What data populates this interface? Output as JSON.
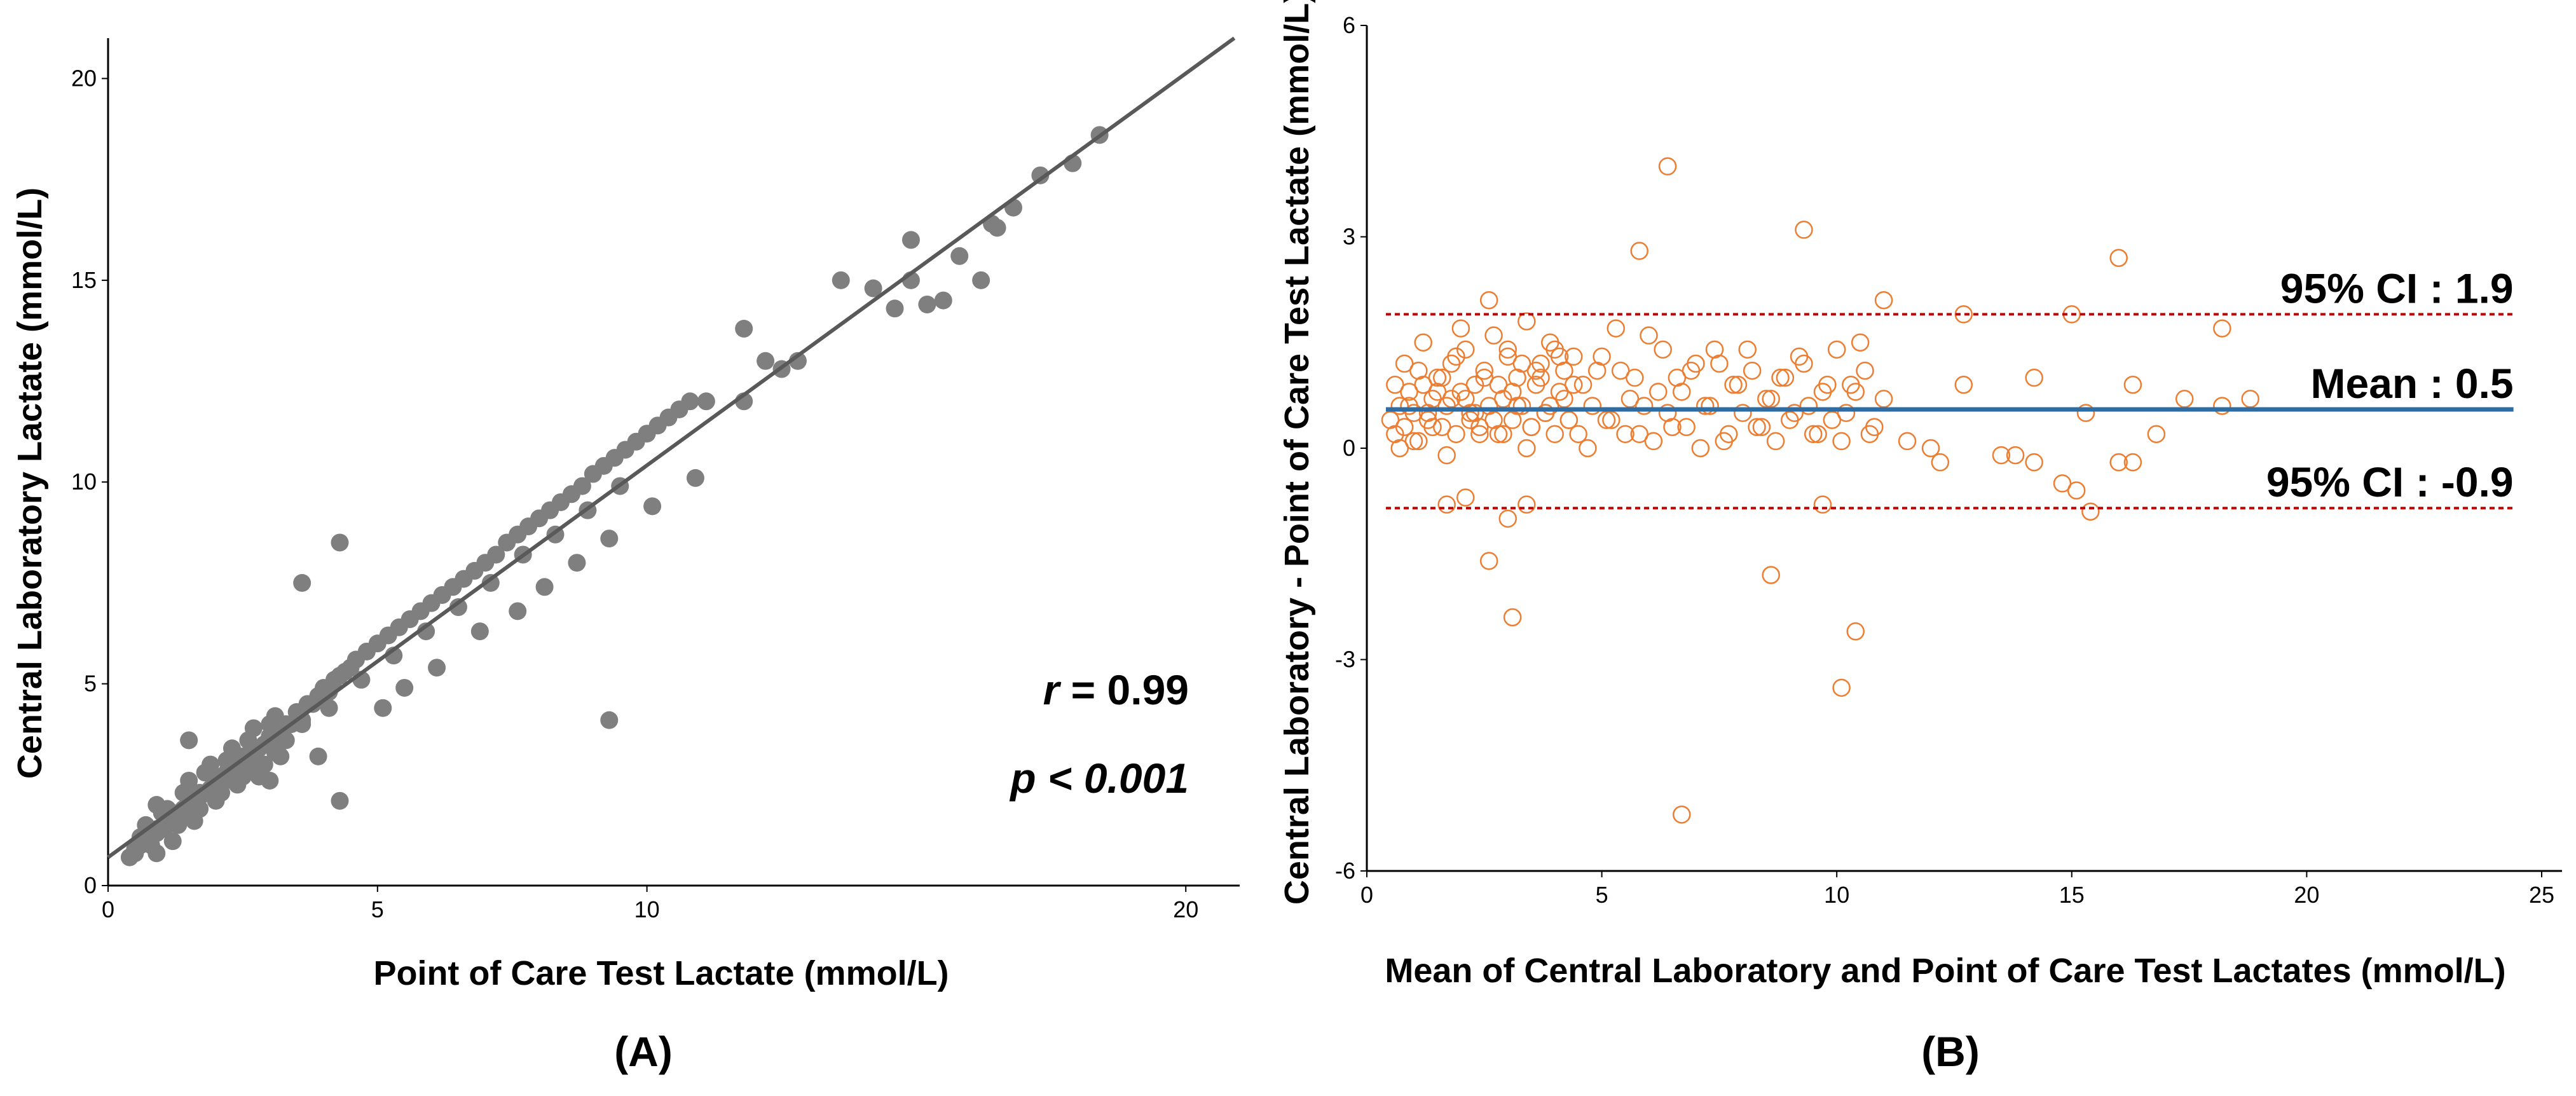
{
  "colors": {
    "scatter_points": "#7f7f7f",
    "regression_line": "#595959",
    "ba_points": "#ed7d31",
    "mean_line": "#2e6ca4",
    "ci_lines": "#c00000"
  },
  "chart_data": [
    {
      "panel_label": "(A)",
      "type": "scatter",
      "xlabel": "Point of Care Test Lactate (mmol/L)",
      "ylabel": "Central Laboratory Lactate (mmol/L)",
      "xlim": [
        0,
        21
      ],
      "ylim": [
        0,
        21
      ],
      "xticks": [
        0,
        5,
        10,
        20
      ],
      "yticks": [
        0,
        5,
        10,
        15,
        20
      ],
      "annotations": {
        "r_symbol": "r",
        "r_text": " = 0.99",
        "p_symbol": "p",
        "p_text": " < 0.001"
      },
      "regression_line": {
        "x": [
          0,
          20.9
        ],
        "y": [
          0.7,
          21.0
        ]
      },
      "series": [
        {
          "x": [
            0.4,
            0.5,
            0.6,
            0.7,
            0.8,
            0.9,
            1.0,
            1.1,
            1.2,
            1.3,
            1.4,
            1.5,
            1.6,
            1.7,
            1.8,
            1.9,
            2.0,
            2.1,
            2.2,
            2.3,
            2.4,
            2.5,
            2.6,
            2.7,
            2.8,
            2.9,
            3.0,
            3.1,
            3.2,
            3.3,
            0.6,
            0.8,
            1.0,
            1.2,
            1.4,
            1.6,
            1.8,
            2.0,
            2.2,
            2.4,
            2.6,
            2.8,
            3.0,
            3.2,
            0.7,
            0.9,
            1.1,
            1.3,
            1.5,
            1.7,
            1.9,
            2.1,
            2.3,
            2.5,
            2.7,
            2.9,
            3.1,
            3.3,
            3.4,
            3.5,
            3.6,
            3.7,
            3.8,
            3.9,
            4.0,
            4.1,
            4.2,
            4.3,
            4.4,
            4.5,
            4.6,
            4.8,
            5.0,
            5.2,
            5.4,
            5.6,
            5.8,
            6.0,
            6.2,
            6.4,
            6.6,
            6.8,
            7.0,
            7.2,
            7.4,
            7.6,
            7.8,
            8.0,
            8.2,
            8.4,
            8.6,
            8.8,
            9.0,
            9.2,
            9.4,
            9.6,
            9.8,
            10.0,
            10.2,
            10.4,
            10.6,
            10.8,
            11.1,
            11.8,
            11.8,
            12.2,
            12.5,
            12.8,
            14.2,
            14.6,
            14.9,
            15.2,
            15.5,
            15.8,
            16.2,
            16.4,
            16.8,
            17.3,
            17.9,
            18.4,
            14.9,
            13.6,
            16.5,
            9.3,
            4.3,
            4.3,
            3.6,
            2.5,
            1.5,
            0.9,
            3.0,
            3.9,
            5.1,
            5.5,
            6.1,
            6.9,
            7.6,
            8.1,
            8.7,
            9.3,
            10.1,
            10.9,
            0.5,
            0.9,
            1.3,
            1.7,
            2.1,
            2.6,
            3.1,
            3.6,
            4.1,
            4.7,
            5.3,
            5.9,
            6.5,
            7.1,
            7.7,
            8.3,
            8.9,
            9.5
          ],
          "y": [
            0.7,
            0.9,
            1.0,
            1.1,
            1.2,
            1.4,
            1.4,
            1.5,
            1.7,
            1.8,
            1.9,
            2.0,
            2.1,
            2.3,
            2.3,
            2.4,
            2.6,
            2.7,
            2.8,
            2.9,
            3.0,
            3.1,
            3.2,
            3.3,
            3.4,
            3.5,
            3.7,
            3.7,
            3.9,
            4.0,
            1.2,
            1.0,
            1.8,
            1.1,
            2.3,
            1.6,
            2.8,
            2.1,
            3.1,
            2.5,
            3.6,
            2.7,
            4.0,
            3.2,
            1.5,
            0.8,
            1.9,
            1.5,
            2.6,
            1.9,
            3.0,
            2.3,
            3.4,
            2.7,
            3.9,
            3.0,
            4.2,
            3.6,
            4.0,
            4.3,
            4.1,
            4.5,
            4.5,
            4.7,
            4.9,
            4.8,
            5.1,
            5.2,
            5.3,
            5.4,
            5.6,
            5.8,
            6.0,
            6.2,
            6.4,
            6.6,
            6.8,
            7.0,
            7.2,
            7.4,
            7.6,
            7.8,
            8.0,
            8.2,
            8.5,
            8.7,
            8.9,
            9.1,
            9.3,
            9.5,
            9.7,
            9.9,
            10.2,
            10.4,
            10.6,
            10.8,
            11.0,
            11.2,
            11.4,
            11.6,
            11.8,
            12.0,
            12.0,
            12.0,
            13.8,
            13.0,
            12.8,
            13.0,
            14.8,
            14.3,
            16.0,
            14.4,
            14.5,
            15.6,
            15.0,
            16.4,
            16.8,
            17.6,
            17.9,
            18.6,
            15.0,
            15.0,
            16.3,
            4.1,
            8.5,
            2.1,
            7.5,
            3.2,
            3.6,
            2.0,
            2.6,
            3.2,
            4.4,
            4.9,
            5.4,
            6.3,
            6.8,
            7.4,
            8.0,
            8.6,
            9.4,
            10.1,
            0.8,
            1.3,
            1.6,
            2.2,
            2.5,
            3.0,
            3.3,
            4.0,
            4.4,
            5.1,
            5.7,
            6.3,
            6.9,
            7.5,
            8.2,
            8.7,
            9.3,
            9.9
          ]
        }
      ]
    },
    {
      "panel_label": "(B)",
      "type": "scatter",
      "xlabel": "Mean of Central Laboratory and Point of Care Test Lactates (mmol/L)",
      "ylabel": "Central Laboratory - Point of Care Test Lactate (mmol/L)",
      "xlim": [
        0,
        25
      ],
      "ylim": [
        -6,
        6
      ],
      "xticks": [
        0,
        5,
        10,
        15,
        20,
        25
      ],
      "yticks": [
        -6,
        -3,
        0,
        3,
        6
      ],
      "reference_lines": [
        {
          "name": "95% CI : 1.9",
          "value": 1.9
        },
        {
          "name": "Mean : 0.5",
          "value": 0.55
        },
        {
          "name": "95% CI : -0.9",
          "value": -0.85
        }
      ],
      "series": [
        {
          "x": [
            0.5,
            0.6,
            0.7,
            0.8,
            0.9,
            1.0,
            1.1,
            1.2,
            1.3,
            1.4,
            1.5,
            1.6,
            1.7,
            1.8,
            1.9,
            2.0,
            2.1,
            2.2,
            2.3,
            2.4,
            2.5,
            2.6,
            2.7,
            2.8,
            2.9,
            3.0,
            3.1,
            3.2,
            3.3,
            3.4,
            3.5,
            3.6,
            3.7,
            3.8,
            3.9,
            4.0,
            4.1,
            4.2,
            4.3,
            4.4,
            0.6,
            0.8,
            1.0,
            1.2,
            1.4,
            1.6,
            1.8,
            2.0,
            2.2,
            2.4,
            2.6,
            2.8,
            3.0,
            3.2,
            3.4,
            3.6,
            3.8,
            4.0,
            4.2,
            4.4,
            0.7,
            0.9,
            1.1,
            1.3,
            1.5,
            1.7,
            1.9,
            2.1,
            2.3,
            2.5,
            2.7,
            2.9,
            3.1,
            3.3,
            3.5,
            3.7,
            3.9,
            4.1,
            4.3,
            4.5,
            4.6,
            4.8,
            5.0,
            5.2,
            5.4,
            5.6,
            5.8,
            6.0,
            6.2,
            6.4,
            6.6,
            6.8,
            7.0,
            7.2,
            7.4,
            7.6,
            7.8,
            8.0,
            8.2,
            8.4,
            8.6,
            8.8,
            9.0,
            9.2,
            9.4,
            9.6,
            9.8,
            10.0,
            10.2,
            10.4,
            10.6,
            10.8,
            11.0,
            4.7,
            4.9,
            5.1,
            5.3,
            5.5,
            5.7,
            5.9,
            6.1,
            6.3,
            6.5,
            6.7,
            6.9,
            7.1,
            7.3,
            7.5,
            7.7,
            7.9,
            8.1,
            8.3,
            8.5,
            8.7,
            8.9,
            9.1,
            9.3,
            9.5,
            9.7,
            9.9,
            10.1,
            10.3,
            10.5,
            10.7,
            11.5,
            12.0,
            12.7,
            13.5,
            14.2,
            14.8,
            15.3,
            16.0,
            16.3,
            16.8,
            17.4,
            18.2,
            18.8,
            12.7,
            14.2,
            15.0,
            16.0,
            18.2,
            11.0,
            6.4,
            9.3,
            5.8,
            10.4,
            10.1,
            3.1,
            2.6,
            8.6,
            6.7,
            15.1,
            15.4,
            16.3,
            13.8,
            12.2,
            9.7,
            3.4,
            3.0,
            2.1,
            1.7
          ],
          "y": [
            0.4,
            0.2,
            0.6,
            0.3,
            0.8,
            0.5,
            0.1,
            0.9,
            0.4,
            0.7,
            1.0,
            0.3,
            0.6,
            1.2,
            0.2,
            0.8,
            1.4,
            0.5,
            0.9,
            0.3,
            1.1,
            0.6,
            1.6,
            0.2,
            0.7,
            1.3,
            0.4,
            1.0,
            0.6,
            1.8,
            0.3,
            0.9,
            1.2,
            0.5,
            1.5,
            0.2,
            0.8,
            1.1,
            0.4,
            1.3,
            0.9,
            1.2,
            0.1,
            1.5,
            0.3,
            1.0,
            0.7,
            1.7,
            0.4,
            0.2,
            2.1,
            0.9,
            1.4,
            0.6,
            0.0,
            1.1,
            0.5,
            1.4,
            0.7,
            0.9,
            0.0,
            0.6,
            1.1,
            0.5,
            0.8,
            -0.1,
            1.3,
            0.7,
            0.5,
            1.0,
            0.4,
            0.2,
            0.8,
            1.2,
            0.3,
            1.0,
            0.6,
            1.3,
            0.4,
            0.2,
            0.9,
            0.6,
            1.3,
            0.4,
            1.1,
            0.7,
            0.2,
            1.6,
            0.8,
            0.5,
            1.0,
            0.3,
            1.2,
            0.6,
            1.4,
            0.1,
            0.9,
            0.5,
            1.1,
            0.3,
            0.7,
            1.0,
            0.4,
            1.3,
            0.6,
            0.2,
            0.9,
            1.4,
            0.5,
            0.8,
            1.1,
            0.3,
            0.7,
            0.0,
            1.1,
            0.4,
            1.7,
            0.2,
            1.0,
            0.6,
            0.1,
            1.4,
            0.3,
            0.8,
            1.1,
            0.0,
            0.6,
            1.2,
            0.2,
            0.9,
            1.4,
            0.3,
            0.7,
            0.1,
            1.0,
            0.5,
            1.2,
            0.2,
            0.8,
            0.4,
            0.1,
            0.9,
            1.5,
            0.2,
            0.1,
            0.0,
            0.9,
            -0.1,
            -0.2,
            -0.5,
            0.5,
            -0.2,
            0.9,
            0.2,
            0.7,
            0.6,
            0.7,
            1.9,
            1.0,
            1.9,
            2.7,
            1.7,
            2.1,
            4.0,
            3.1,
            2.8,
            -2.6,
            -3.4,
            -2.4,
            -1.6,
            -1.8,
            -5.2,
            -0.6,
            -0.9,
            -0.2,
            -0.1,
            -0.2,
            -0.8,
            -0.8,
            -1.0,
            -0.7,
            -0.8
          ]
        }
      ]
    }
  ]
}
